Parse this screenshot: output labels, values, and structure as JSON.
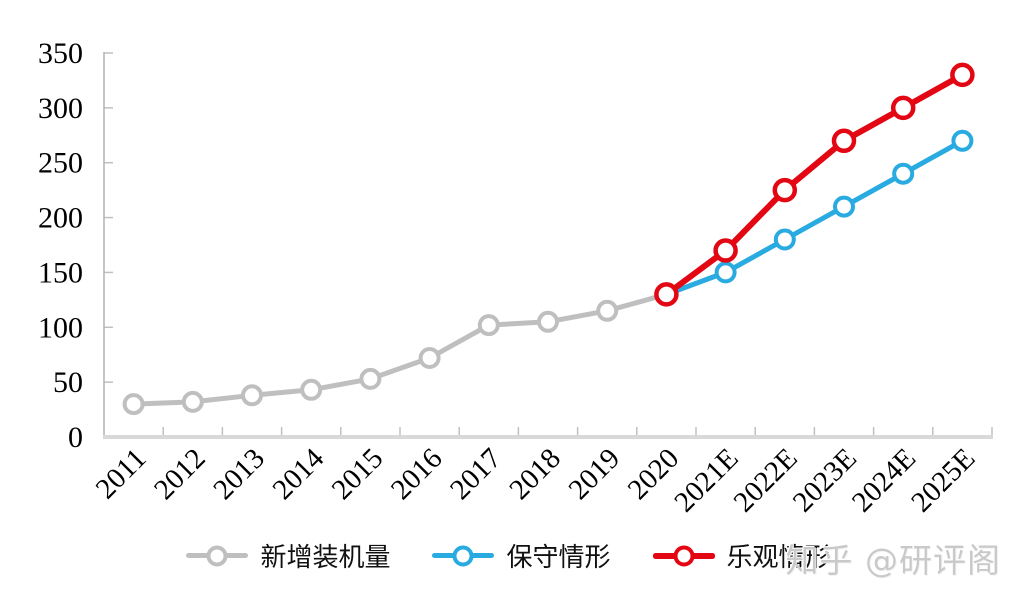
{
  "watermark": {
    "text": "知乎 @研评阁"
  },
  "axes": {
    "y_axis_color": "#b3b3b3",
    "tick_color": "#c0c0c0",
    "x_baseline_color": "#d9d9d9",
    "label_color": "#000000"
  },
  "chart_data": {
    "type": "line",
    "title": "",
    "xlabel": "",
    "ylabel": "",
    "ylim": [
      0,
      350
    ],
    "ytick_interval": 50,
    "grid": false,
    "legend_position": "bottom",
    "categories": [
      "2011",
      "2012",
      "2013",
      "2014",
      "2015",
      "2016",
      "2017",
      "2018",
      "2019",
      "2020",
      "2021E",
      "2022E",
      "2023E",
      "2024E",
      "2025E"
    ],
    "series": [
      {
        "name": "新增装机量",
        "color": "#bfbfbf",
        "line_width": 5,
        "marker": "open-circle",
        "values": [
          30,
          32,
          38,
          43,
          53,
          72,
          102,
          105,
          115,
          130,
          null,
          null,
          null,
          null,
          null
        ]
      },
      {
        "name": "保守情形",
        "color": "#29abe2",
        "line_width": 5,
        "marker": "open-circle",
        "values": [
          null,
          null,
          null,
          null,
          null,
          null,
          null,
          null,
          null,
          130,
          150,
          180,
          210,
          240,
          270
        ]
      },
      {
        "name": "乐观情形",
        "color": "#e30613",
        "line_width": 6,
        "marker": "open-circle",
        "values": [
          null,
          null,
          null,
          null,
          null,
          null,
          null,
          null,
          null,
          130,
          170,
          225,
          270,
          300,
          330
        ]
      }
    ]
  }
}
